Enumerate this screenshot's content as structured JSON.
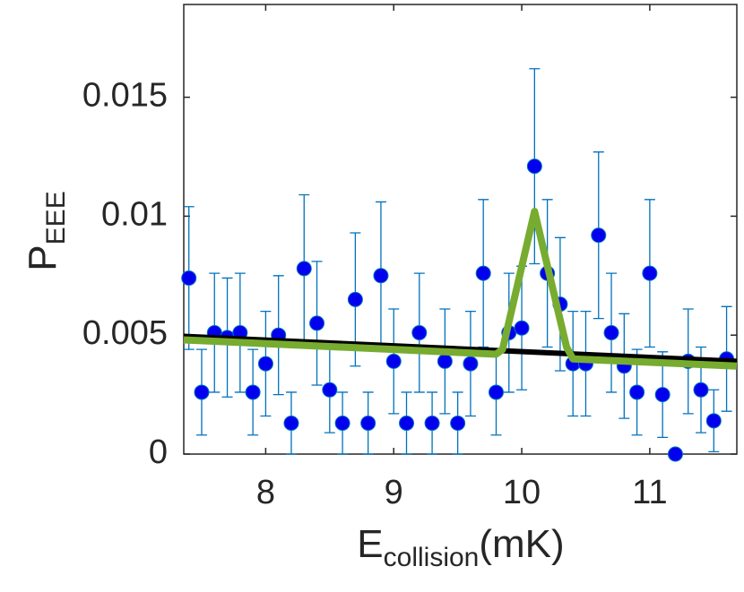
{
  "chart_data": {
    "type": "scatter",
    "xlabel": {
      "main": "E",
      "sub": "collision",
      "unit": "(mK)"
    },
    "ylabel": {
      "main": "P",
      "sub": "EEE"
    },
    "xlim": [
      7.36,
      11.68
    ],
    "ylim": [
      0,
      0.0189
    ],
    "xticks": [
      8,
      9,
      10,
      11
    ],
    "yticks": [
      0,
      0.005,
      0.01,
      0.015
    ],
    "series": [
      {
        "type": "errorbar",
        "color": "#0000ee",
        "error_color": "#0072bd",
        "x": [
          7.4,
          7.5,
          7.6,
          7.7,
          7.8,
          7.9,
          8.0,
          8.1,
          8.2,
          8.3,
          8.4,
          8.5,
          8.6,
          8.7,
          8.8,
          8.9,
          9.0,
          9.1,
          9.2,
          9.3,
          9.4,
          9.5,
          9.6,
          9.7,
          9.8,
          9.9,
          10.0,
          10.1,
          10.2,
          10.3,
          10.4,
          10.5,
          10.6,
          10.7,
          10.8,
          10.9,
          11.0,
          11.1,
          11.2,
          11.3,
          11.4,
          11.5,
          11.6
        ],
        "values": [
          0.0074,
          0.0026,
          0.0051,
          0.0049,
          0.0051,
          0.0026,
          0.0038,
          0.005,
          0.0013,
          0.0078,
          0.0055,
          0.0027,
          0.0013,
          0.0065,
          0.0013,
          0.0075,
          0.0039,
          0.0013,
          0.0051,
          0.0013,
          0.0039,
          0.0013,
          0.0038,
          0.0076,
          0.0026,
          0.0051,
          0.0053,
          0.0121,
          0.0076,
          0.0063,
          0.0038,
          0.0038,
          0.0092,
          0.0051,
          0.0037,
          0.0026,
          0.0076,
          0.0025,
          0,
          0.0039,
          0.0027,
          0.0014,
          0.004
        ],
        "errors": [
          0.003,
          0.0018,
          0.0025,
          0.0025,
          0.0025,
          0.0018,
          0.0022,
          0.0025,
          0.0013,
          0.0031,
          0.0026,
          0.0018,
          0.0013,
          0.0028,
          0.0013,
          0.0031,
          0.0022,
          0.0013,
          0.0025,
          0.0013,
          0.0022,
          0.0013,
          0.0022,
          0.0031,
          0.0018,
          0.0025,
          0.0026,
          0.0041,
          0.0031,
          0.0028,
          0.0022,
          0.0022,
          0.0035,
          0.0025,
          0.0022,
          0.0018,
          0.0031,
          0.0018,
          0,
          0.0022,
          0.0018,
          0.0013,
          0.0022
        ]
      },
      {
        "type": "line",
        "color": "#000000",
        "x": [
          7.36,
          11.68
        ],
        "values": [
          0.00495,
          0.0039
        ]
      },
      {
        "type": "line",
        "color": "#77ac30",
        "x": [
          7.36,
          9.8,
          9.85,
          10.1,
          10.35,
          10.4,
          11.68
        ],
        "values": [
          0.0048,
          0.0042,
          0.0044,
          0.0102,
          0.0045,
          0.004,
          0.0037
        ]
      }
    ]
  }
}
